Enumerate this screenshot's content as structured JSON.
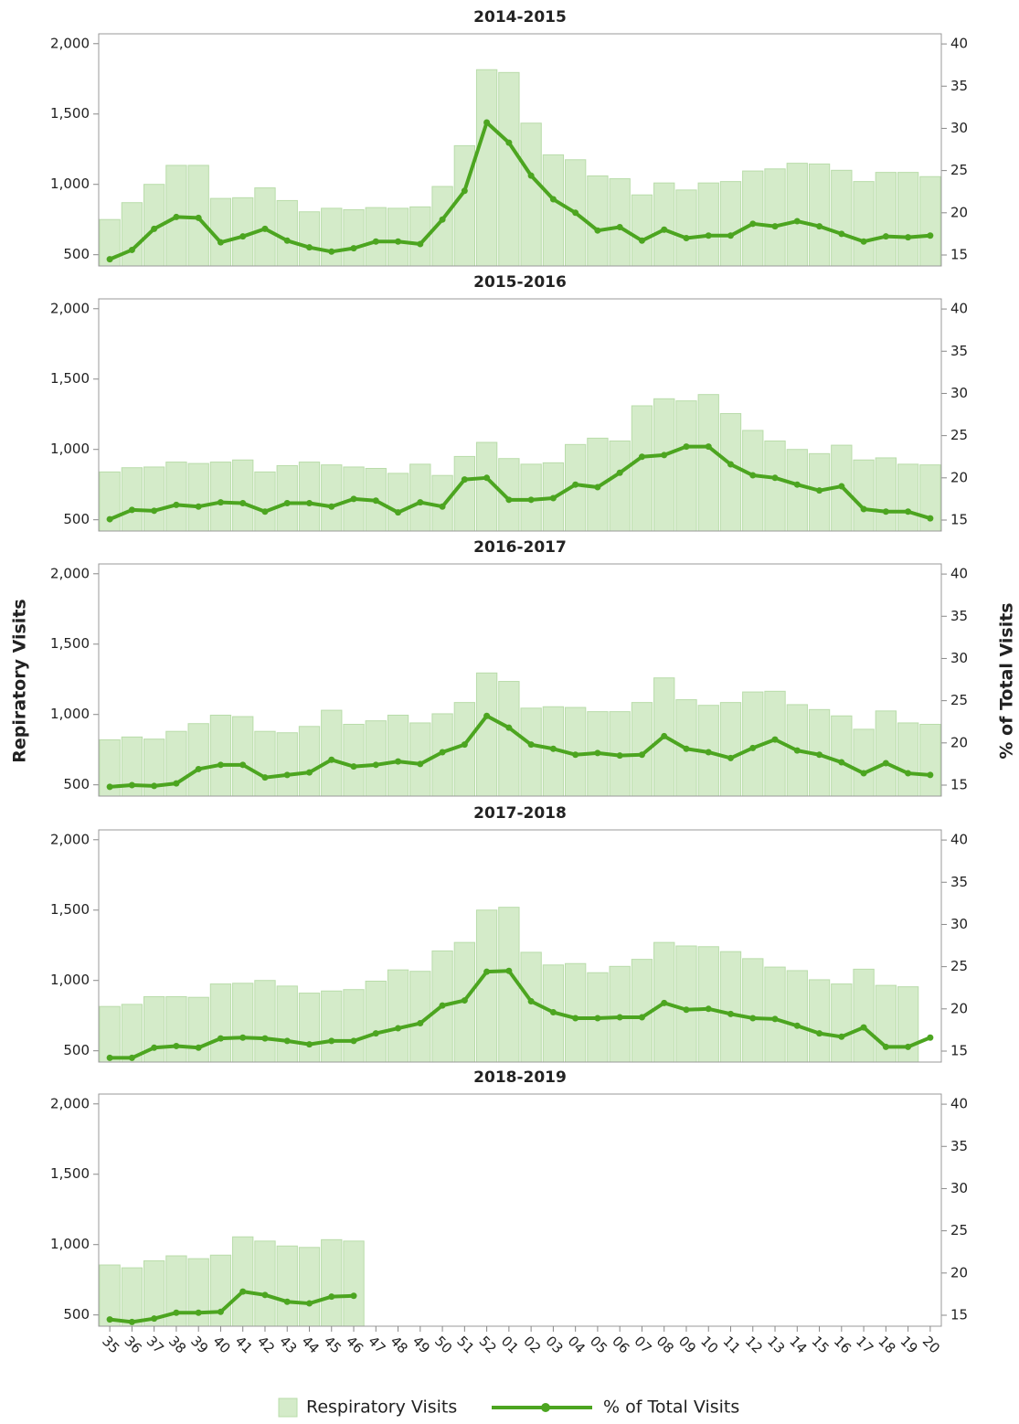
{
  "chart_data": {
    "type": "bar",
    "y_label": "Repiratory Visits",
    "y2_label": "% of Total Visits",
    "categories": [
      "35",
      "36",
      "37",
      "38",
      "39",
      "40",
      "41",
      "42",
      "43",
      "44",
      "45",
      "46",
      "47",
      "48",
      "49",
      "50",
      "51",
      "52",
      "01",
      "02",
      "03",
      "04",
      "05",
      "06",
      "07",
      "08",
      "09",
      "10",
      "11",
      "12",
      "13",
      "14",
      "15",
      "16",
      "17",
      "18",
      "19",
      "20"
    ],
    "ylim": [
      420,
      2070
    ],
    "yticks": [
      500,
      {
        "value": 1000,
        "label": "1,000"
      },
      {
        "value": 1500,
        "label": "1,500"
      },
      {
        "value": 2000,
        "label": "2,000"
      }
    ],
    "y2lim": [
      13.7,
      41.2
    ],
    "y2ticks": [
      15,
      20,
      25,
      30,
      35,
      40
    ],
    "series": [
      {
        "name": "Respiratory Visits",
        "type": "bar",
        "color": "#d4ebc9"
      },
      {
        "name": "% of Total Visits",
        "type": "line",
        "axis": "y2",
        "color": "#4ca520"
      }
    ],
    "panels": [
      {
        "title": "2014-2015",
        "series": [
          {
            "values": [
              750,
              870,
              1000,
              1135,
              1135,
              900,
              905,
              975,
              885,
              805,
              830,
              820,
              835,
              830,
              840,
              985,
              1275,
              1815,
              1795,
              1435,
              1210,
              1175,
              1060,
              1040,
              925,
              1010,
              960,
              1010,
              1020,
              1095,
              1110,
              1150,
              1145,
              1100,
              1020,
              1085,
              1085,
              1055
            ]
          },
          {
            "values": [
              14.5,
              15.6,
              18.1,
              19.5,
              19.4,
              16.5,
              17.2,
              18.1,
              16.7,
              15.9,
              15.4,
              15.8,
              16.6,
              16.6,
              16.3,
              19.2,
              22.6,
              30.7,
              28.3,
              24.4,
              21.6,
              20.0,
              17.9,
              18.3,
              16.7,
              18.0,
              17.0,
              17.3,
              17.3,
              18.7,
              18.4,
              19.0,
              18.4,
              17.5,
              16.6,
              17.2,
              17.1,
              17.3
            ]
          }
        ]
      },
      {
        "title": "2015-2016",
        "series": [
          {
            "values": [
              840,
              870,
              875,
              910,
              900,
              910,
              925,
              840,
              885,
              910,
              890,
              875,
              865,
              830,
              895,
              815,
              950,
              1050,
              935,
              895,
              905,
              1035,
              1080,
              1060,
              1310,
              1360,
              1345,
              1390,
              1255,
              1135,
              1060,
              1000,
              970,
              1030,
              925,
              940,
              895,
              890
            ]
          },
          {
            "values": [
              15.1,
              16.2,
              16.1,
              16.8,
              16.6,
              17.1,
              17.0,
              16.0,
              17.0,
              17.0,
              16.6,
              17.5,
              17.3,
              15.9,
              17.1,
              16.6,
              19.8,
              20.0,
              17.4,
              17.4,
              17.6,
              19.2,
              18.9,
              20.6,
              22.5,
              22.7,
              23.7,
              23.7,
              21.6,
              20.3,
              20.0,
              19.2,
              18.5,
              19.0,
              16.3,
              16.0,
              16.0,
              15.2
            ]
          }
        ]
      },
      {
        "title": "2016-2017",
        "series": [
          {
            "values": [
              820,
              840,
              825,
              880,
              935,
              995,
              985,
              880,
              870,
              915,
              1030,
              930,
              955,
              995,
              940,
              1005,
              1085,
              1295,
              1235,
              1045,
              1055,
              1050,
              1020,
              1020,
              1085,
              1260,
              1105,
              1065,
              1085,
              1160,
              1165,
              1070,
              1035,
              990,
              895,
              1025,
              940,
              930
            ]
          },
          {
            "values": [
              14.8,
              15.0,
              14.9,
              15.2,
              16.9,
              17.4,
              17.4,
              15.9,
              16.2,
              16.5,
              18.0,
              17.2,
              17.4,
              17.8,
              17.5,
              18.9,
              19.8,
              23.2,
              21.8,
              19.8,
              19.3,
              18.6,
              18.8,
              18.5,
              18.6,
              20.8,
              19.3,
              18.9,
              18.2,
              19.4,
              20.4,
              19.1,
              18.6,
              17.7,
              16.4,
              17.6,
              16.4,
              16.2
            ]
          }
        ]
      },
      {
        "title": "2017-2018",
        "series": [
          {
            "values": [
              815,
              830,
              885,
              885,
              880,
              975,
              980,
              1000,
              960,
              910,
              925,
              935,
              995,
              1075,
              1065,
              1210,
              1270,
              1500,
              1520,
              1200,
              1110,
              1120,
              1055,
              1100,
              1150,
              1270,
              1245,
              1240,
              1205,
              1155,
              1095,
              1070,
              1005,
              975,
              1080,
              965,
              955,
              null
            ]
          },
          {
            "values": [
              14.2,
              14.2,
              15.4,
              15.6,
              15.4,
              16.5,
              16.6,
              16.5,
              16.2,
              15.8,
              16.2,
              16.2,
              17.1,
              17.7,
              18.3,
              20.4,
              21.0,
              24.4,
              24.5,
              20.9,
              19.6,
              18.9,
              18.9,
              19.0,
              19.0,
              20.7,
              19.9,
              20.0,
              19.4,
              18.9,
              18.8,
              18.0,
              17.1,
              16.7,
              17.8,
              15.5,
              15.5,
              16.6
            ]
          }
        ]
      },
      {
        "title": "2018-2019",
        "series": [
          {
            "values": [
              855,
              835,
              885,
              920,
              900,
              925,
              1055,
              1025,
              990,
              980,
              1035,
              1025,
              null,
              null,
              null,
              null,
              null,
              null,
              null,
              null,
              null,
              null,
              null,
              null,
              null,
              null,
              null,
              null,
              null,
              null,
              null,
              null,
              null,
              null,
              null,
              null,
              null,
              null
            ]
          },
          {
            "values": [
              14.5,
              14.2,
              14.6,
              15.3,
              15.3,
              15.4,
              17.8,
              17.4,
              16.6,
              16.4,
              17.2,
              17.3,
              null,
              null,
              null,
              null,
              null,
              null,
              null,
              null,
              null,
              null,
              null,
              null,
              null,
              null,
              null,
              null,
              null,
              null,
              null,
              null,
              null,
              null,
              null,
              null,
              null,
              null
            ]
          }
        ]
      }
    ]
  }
}
